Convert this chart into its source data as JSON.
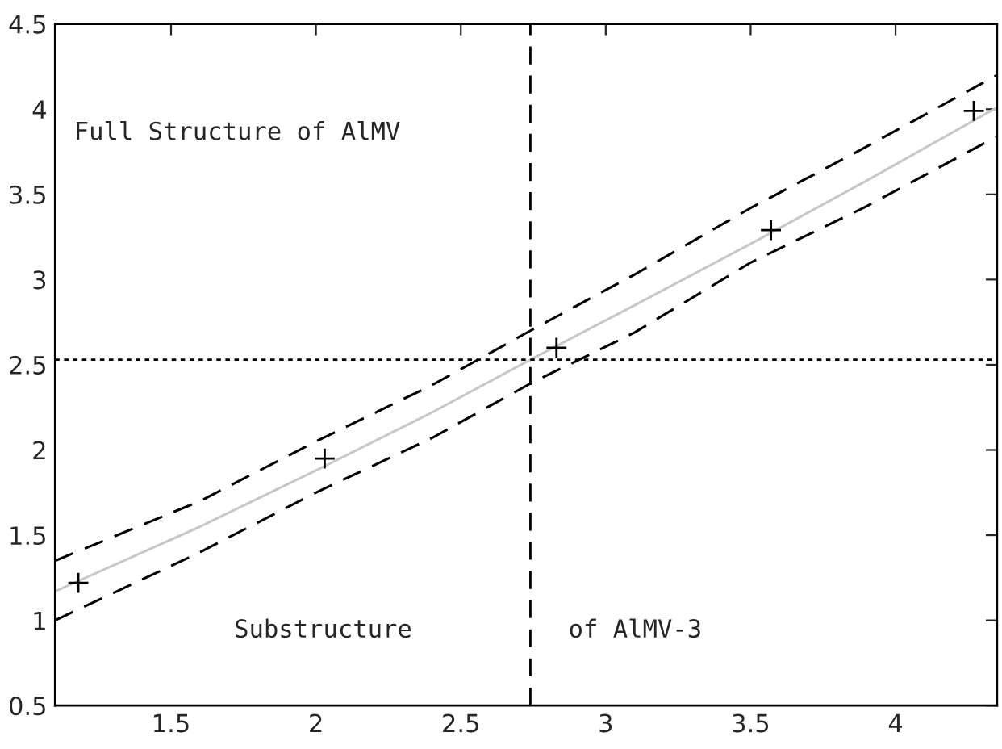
{
  "chart_data": {
    "type": "scatter",
    "xlim": [
      1.1,
      4.35
    ],
    "xticks": [
      1.5,
      2,
      2.5,
      3,
      3.5,
      4
    ],
    "ylim": [
      0.5,
      4.5
    ],
    "yticks": [
      0.5,
      1,
      1.5,
      2,
      2.5,
      3,
      3.5,
      4,
      4.5
    ],
    "grid": false,
    "legend": false,
    "series": [
      {
        "type": "line",
        "color": "#c8c8c8",
        "line_style": "solid",
        "marker": "none",
        "x": [
          1.1,
          1.6,
          2.0,
          2.4,
          2.74,
          3.1,
          3.5,
          3.9,
          4.35
        ],
        "values": [
          1.17,
          1.55,
          1.88,
          2.22,
          2.53,
          2.85,
          3.21,
          3.58,
          4.01
        ]
      },
      {
        "type": "line",
        "color": "#000000",
        "line_style": "dashed",
        "marker": "none",
        "x": [
          1.1,
          1.6,
          2.0,
          2.4,
          2.74,
          3.1,
          3.5,
          3.9,
          4.35
        ],
        "values": [
          1.35,
          1.7,
          2.05,
          2.38,
          2.7,
          3.03,
          3.42,
          3.78,
          4.2
        ]
      },
      {
        "type": "line",
        "color": "#000000",
        "line_style": "dashed",
        "marker": "none",
        "x": [
          1.1,
          1.6,
          2.0,
          2.4,
          2.74,
          3.1,
          3.5,
          3.9,
          4.35
        ],
        "values": [
          1.0,
          1.4,
          1.75,
          2.07,
          2.39,
          2.69,
          3.1,
          3.43,
          3.84
        ]
      },
      {
        "color": "#000000",
        "marker": "cross",
        "x": [
          1.18,
          2.03,
          2.83,
          3.57,
          4.27
        ],
        "values": [
          1.22,
          1.95,
          2.6,
          3.29,
          3.99
        ]
      }
    ],
    "ref_lines": [
      {
        "axis": "x",
        "value": 2.74,
        "color": "#000000",
        "line_style": "dashed"
      },
      {
        "axis": "y",
        "value": 2.53,
        "color": "#000000",
        "line_style": "dotted"
      }
    ],
    "annotations": [
      "Full Structure of AlMV",
      "Substructure",
      "of AlMV-3"
    ]
  }
}
